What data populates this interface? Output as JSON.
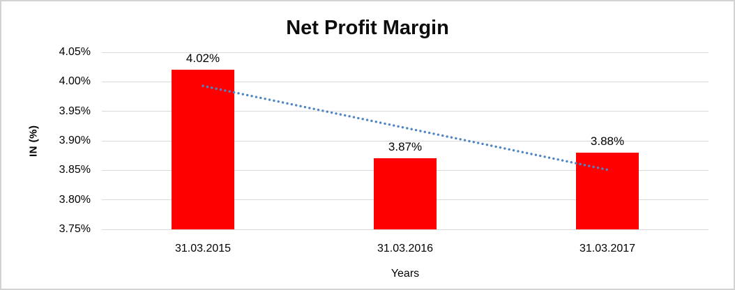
{
  "chart": {
    "title": "Net Profit Margin",
    "background_color": "#ffffff",
    "frame_border_color": "#d2d2d2",
    "gridline_color": "#d9d9d9",
    "bar_color": "#ff0000",
    "trendline_color": "#4e86c6",
    "text_color": "#000000"
  },
  "chart_data": {
    "type": "bar",
    "title": "Net Profit Margin",
    "xlabel": "Years",
    "ylabel": "IN (%)",
    "categories": [
      "31.03.2015",
      "31.03.2016",
      "31.03.2017"
    ],
    "values": [
      4.02,
      3.87,
      3.88
    ],
    "data_labels": [
      "4.02%",
      "3.87%",
      "3.88%"
    ],
    "unit": "%",
    "ylim": [
      3.75,
      4.05
    ],
    "y_tick_values": [
      4.05,
      4.0,
      3.95,
      3.9,
      3.85,
      3.8,
      3.75
    ],
    "y_tick_labels": [
      "4.05%",
      "4.00%",
      "3.95%",
      "3.90%",
      "3.85%",
      "3.80%",
      "3.75%"
    ],
    "grid": true,
    "legend_position": "none",
    "series_color": "#ff0000",
    "trendline": {
      "type": "linear",
      "style": "dotted",
      "color": "#4e86c6",
      "start_value": 3.993,
      "end_value": 3.851
    }
  }
}
